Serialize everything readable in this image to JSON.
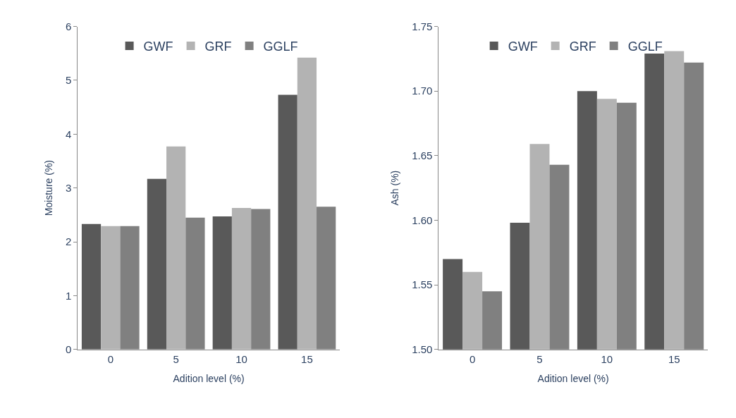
{
  "chart_data": [
    {
      "type": "bar",
      "xlabel": "Adition level (%)",
      "ylabel": "Moisture (%)",
      "categories": [
        "0",
        "5",
        "10",
        "15"
      ],
      "ylim": [
        0,
        6
      ],
      "yticks": [
        0,
        1,
        2,
        3,
        4,
        5,
        6
      ],
      "legend": "top",
      "series": [
        {
          "name": "GWF",
          "color": "#595959",
          "values": [
            2.33,
            3.17,
            2.47,
            4.73
          ]
        },
        {
          "name": "GRF",
          "color": "#b3b3b3",
          "values": [
            2.29,
            3.77,
            2.63,
            5.42
          ]
        },
        {
          "name": "GGLF",
          "color": "#808080",
          "values": [
            2.29,
            2.45,
            2.61,
            2.65
          ]
        }
      ]
    },
    {
      "type": "bar",
      "xlabel": "Adition level (%)",
      "ylabel": "Ash (%)",
      "categories": [
        "0",
        "5",
        "10",
        "15"
      ],
      "ylim": [
        1.5,
        1.75
      ],
      "yticks": [
        {
          "value": 1.5,
          "label": "1.50"
        },
        {
          "value": 1.55,
          "label": "1.55"
        },
        {
          "value": 1.6,
          "label": "1.60"
        },
        {
          "value": 1.65,
          "label": "1.65"
        },
        {
          "value": 1.7,
          "label": "1.70"
        },
        {
          "value": 1.75,
          "label": "1.75"
        }
      ],
      "legend": "top",
      "series": [
        {
          "name": "GWF",
          "color": "#595959",
          "values": [
            1.57,
            1.598,
            1.7,
            1.729
          ]
        },
        {
          "name": "GRF",
          "color": "#b3b3b3",
          "values": [
            1.56,
            1.659,
            1.694,
            1.731
          ]
        },
        {
          "name": "GGLF",
          "color": "#808080",
          "values": [
            1.545,
            1.643,
            1.691,
            1.722
          ]
        }
      ]
    }
  ]
}
